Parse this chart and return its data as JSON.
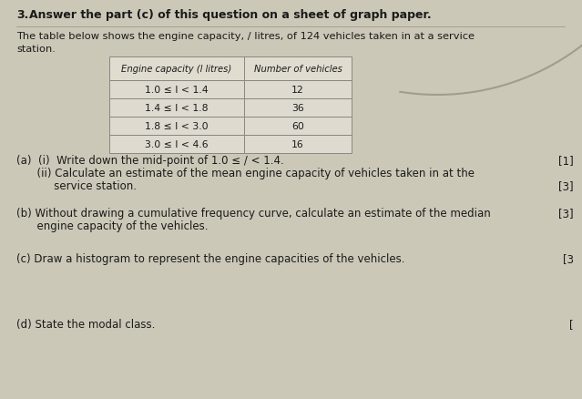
{
  "bg_color": "#ccc8b8",
  "page_color": "#d8d4c4",
  "question_number": "3.",
  "title_bold": "Answer the part (c) of this question on a sheet of graph paper.",
  "subtitle_line1": "The table below shows the engine capacity, / litres, of 124 vehicles taken in at a service",
  "subtitle_line2": "station.",
  "table_header_col1": "Engine capacity (l litres)",
  "table_header_col2": "Number of vehicles",
  "table_rows": [
    [
      "1.0 ≤ l < 1.4",
      ""
    ],
    [
      "",
      "12"
    ],
    [
      "1.4 ≤ l < 1.8",
      ""
    ],
    [
      "",
      "36"
    ],
    [
      "1.8 ≤ l < 3.0",
      ""
    ],
    [
      "",
      "60"
    ],
    [
      "3.0 ≤ l < 4.6",
      ""
    ],
    [
      "",
      "16"
    ]
  ],
  "table_data": [
    {
      "range": "1.0 ≤ l < 1.4",
      "count": "12"
    },
    {
      "range": "1.4 ≤ l < 1.8",
      "count": "36"
    },
    {
      "range": "1.8 ≤ l < 3.0",
      "count": "60"
    },
    {
      "range": "3.0 ≤ l < 4.6",
      "count": "16"
    }
  ],
  "part_a_i": "(a)  (i)  Write down the mid-point of 1.0 ≤ / < 1.4.",
  "mark_a_i": "[1]",
  "part_a_ii_1": "      (ii) Calculate an estimate of the mean engine capacity of vehicles taken in at the",
  "part_a_ii_2": "           service station.",
  "mark_a_ii": "[3]",
  "part_b_1": "(b) Without drawing a cumulative frequency curve, calculate an estimate of the median",
  "part_b_2": "      engine capacity of the vehicles.",
  "mark_b": "[3]",
  "part_c": "(c) Draw a histogram to represent the engine capacities of the vehicles.",
  "mark_c": "[3",
  "part_d": "(d) State the modal class.",
  "mark_d": "[",
  "line_color": "#888880",
  "text_color": "#1a1a1a",
  "table_line_color": "#888880"
}
